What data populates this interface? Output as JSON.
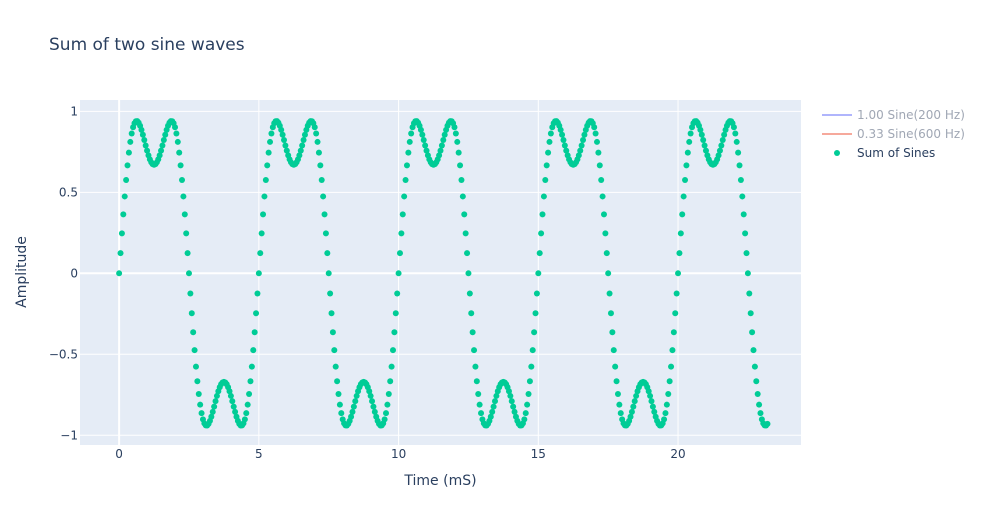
{
  "chart_data": {
    "type": "scatter",
    "title": "Sum of two sine waves",
    "xlabel": "Time (mS)",
    "ylabel": "Amplitude",
    "xlim": [
      -1.4,
      24.4
    ],
    "ylim": [
      -1.06,
      1.07
    ],
    "x_ticks": [
      0,
      5,
      10,
      15,
      20
    ],
    "x_tick_labels": [
      "0",
      "5",
      "10",
      "15",
      "20"
    ],
    "y_ticks": [
      1,
      0.5,
      0,
      -0.5,
      -1
    ],
    "y_tick_labels": [
      "1",
      "0.5",
      "0",
      "−0.5",
      "−1"
    ],
    "grid": true,
    "legend_position": "right",
    "series": [
      {
        "name": "1.00 Sine(200 Hz)",
        "mode": "lines",
        "visible": "legendonly",
        "color": "#636efa",
        "amplitude": 1.0,
        "frequency_hz": 200
      },
      {
        "name": "0.33 Sine(600 Hz)",
        "mode": "lines",
        "visible": "legendonly",
        "color": "#ef553b",
        "amplitude": 0.33,
        "frequency_hz": 600
      },
      {
        "name": "Sum of Sines",
        "mode": "markers",
        "visible": true,
        "color": "#00cc96",
        "x_start": 0,
        "x_end": 23.2,
        "x_step": 0.05
      }
    ]
  },
  "colors": {
    "plot_bg": "#e5ecf6",
    "grid": "#ffffff",
    "text": "#2a3f5f",
    "legend_hidden_text": "#a0a7b4"
  }
}
